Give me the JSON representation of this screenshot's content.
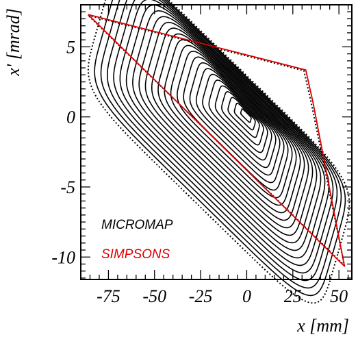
{
  "chart_data": {
    "type": "line",
    "xlabel": "x [mm]",
    "ylabel": "x' [mrad]",
    "xlim": [
      -90,
      57
    ],
    "ylim": [
      -11.6,
      8
    ],
    "x_ticks": [
      -75,
      -50,
      -25,
      0,
      25,
      50
    ],
    "x_tick_labels": [
      "-75",
      "-50",
      "-25",
      "0",
      "25",
      "50"
    ],
    "y_ticks": [
      -10,
      -5,
      0,
      5
    ],
    "y_tick_labels": [
      "-10",
      "-5",
      "0",
      "5"
    ],
    "grid": false,
    "legend_position": "bottom-left",
    "series": [
      {
        "name": "MICROMAP",
        "color": "#000000",
        "style": "nested closed orbits (phase-space contours), outermost dotted",
        "contour_count": 25,
        "outer_boundary": [
          [
            -86,
            7.25
          ],
          [
            31,
            3.3
          ],
          [
            35,
            1.0
          ],
          [
            53,
            -10.6
          ],
          [
            -86,
            7.25
          ]
        ]
      },
      {
        "name": "SIMPSONS",
        "color": "#e00000",
        "style": "boundary trace",
        "outer_boundary": [
          [
            -86,
            7.3
          ],
          [
            32,
            3.35
          ],
          [
            36,
            1.0
          ],
          [
            53,
            -10.65
          ],
          [
            -86,
            7.3
          ]
        ]
      }
    ]
  }
}
